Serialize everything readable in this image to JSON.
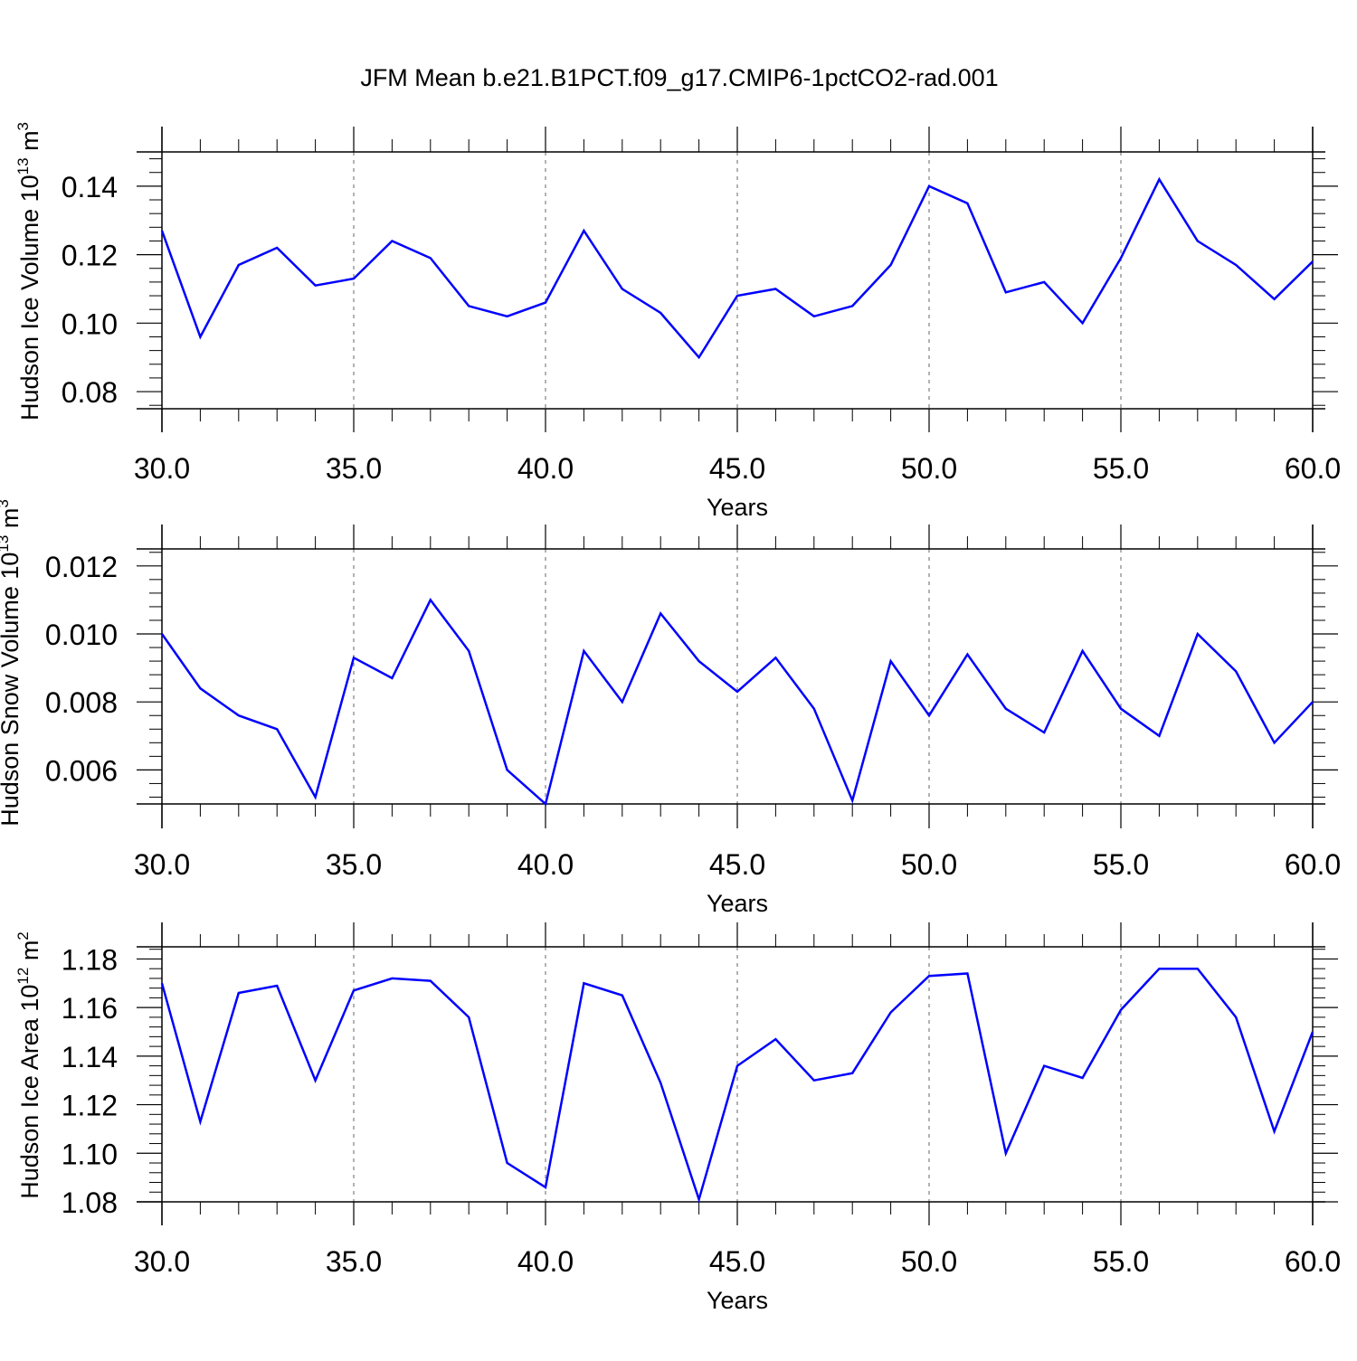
{
  "title": "JFM Mean b.e21.B1PCT.f09_g17.CMIP6-1pctCO2-rad.001",
  "colors": {
    "line": "#0000ff",
    "axis": "#000000",
    "grid": "#666666",
    "background": "#ffffff"
  },
  "chart_data": [
    {
      "type": "line",
      "xlabel": "Years",
      "ylabel": "Hudson Ice Volume 10",
      "ylabel_exp": "13",
      "ylabel_unit": " m",
      "ylabel_unit_exp": "3",
      "xlim": [
        30,
        60
      ],
      "ylim": [
        0.075,
        0.15
      ],
      "xticks": [
        30,
        35,
        40,
        45,
        50,
        55,
        60
      ],
      "xtick_labels": [
        "30.0",
        "35.0",
        "40.0",
        "45.0",
        "50.0",
        "55.0",
        "60.0"
      ],
      "yticks": [
        0.08,
        0.1,
        0.12,
        0.14
      ],
      "ytick_labels": [
        "0.08",
        "0.10",
        "0.12",
        "0.14"
      ],
      "grid": "vertical dashed at major x ticks",
      "series": [
        {
          "x": [
            30,
            31,
            32,
            33,
            34,
            35,
            36,
            37,
            38,
            39,
            40,
            41,
            42,
            43,
            44,
            45,
            46,
            47,
            48,
            49,
            50,
            51,
            52,
            53,
            54,
            55,
            56,
            57,
            58,
            59,
            60
          ],
          "values": [
            0.127,
            0.096,
            0.117,
            0.122,
            0.111,
            0.113,
            0.124,
            0.119,
            0.105,
            0.102,
            0.106,
            0.127,
            0.11,
            0.103,
            0.09,
            0.108,
            0.11,
            0.102,
            0.105,
            0.117,
            0.14,
            0.135,
            0.109,
            0.112,
            0.1,
            0.119,
            0.142,
            0.124,
            0.117,
            0.107,
            0.118
          ]
        }
      ]
    },
    {
      "type": "line",
      "xlabel": "Years",
      "ylabel": "Hudson Snow Volume 10",
      "ylabel_exp": "13",
      "ylabel_unit": " m",
      "ylabel_unit_exp": "3",
      "xlim": [
        30,
        60
      ],
      "ylim": [
        0.005,
        0.0125
      ],
      "xticks": [
        30,
        35,
        40,
        45,
        50,
        55,
        60
      ],
      "xtick_labels": [
        "30.0",
        "35.0",
        "40.0",
        "45.0",
        "50.0",
        "55.0",
        "60.0"
      ],
      "yticks": [
        0.006,
        0.008,
        0.01,
        0.012
      ],
      "ytick_labels": [
        "0.006",
        "0.008",
        "0.010",
        "0.012"
      ],
      "grid": "vertical dashed at major x ticks",
      "series": [
        {
          "x": [
            30,
            31,
            32,
            33,
            34,
            35,
            36,
            37,
            38,
            39,
            40,
            41,
            42,
            43,
            44,
            45,
            46,
            47,
            48,
            49,
            50,
            51,
            52,
            53,
            54,
            55,
            56,
            57,
            58,
            59,
            60
          ],
          "values": [
            0.01,
            0.0084,
            0.0076,
            0.0072,
            0.0052,
            0.0093,
            0.0087,
            0.011,
            0.0095,
            0.006,
            0.005,
            0.0095,
            0.008,
            0.0106,
            0.0092,
            0.0083,
            0.0093,
            0.0078,
            0.0051,
            0.0092,
            0.0076,
            0.0094,
            0.0078,
            0.0071,
            0.0095,
            0.0078,
            0.007,
            0.01,
            0.0089,
            0.0068,
            0.008
          ]
        }
      ]
    },
    {
      "type": "line",
      "xlabel": "Years",
      "ylabel": "Hudson Ice Area 10",
      "ylabel_exp": "12",
      "ylabel_unit": " m",
      "ylabel_unit_exp": "2",
      "xlim": [
        30,
        60
      ],
      "ylim": [
        1.08,
        1.185
      ],
      "xticks": [
        30,
        35,
        40,
        45,
        50,
        55,
        60
      ],
      "xtick_labels": [
        "30.0",
        "35.0",
        "40.0",
        "45.0",
        "50.0",
        "55.0",
        "60.0"
      ],
      "yticks": [
        1.08,
        1.1,
        1.12,
        1.14,
        1.16,
        1.18
      ],
      "ytick_labels": [
        "1.08",
        "1.10",
        "1.12",
        "1.14",
        "1.16",
        "1.18"
      ],
      "grid": "vertical dashed at major x ticks",
      "series": [
        {
          "x": [
            30,
            31,
            32,
            33,
            34,
            35,
            36,
            37,
            38,
            39,
            40,
            41,
            42,
            43,
            44,
            45,
            46,
            47,
            48,
            49,
            50,
            51,
            52,
            53,
            54,
            55,
            56,
            57,
            58,
            59,
            60
          ],
          "values": [
            1.17,
            1.113,
            1.166,
            1.169,
            1.13,
            1.167,
            1.172,
            1.171,
            1.156,
            1.096,
            1.086,
            1.17,
            1.165,
            1.129,
            1.081,
            1.136,
            1.147,
            1.13,
            1.133,
            1.158,
            1.173,
            1.174,
            1.1,
            1.136,
            1.131,
            1.159,
            1.176,
            1.176,
            1.156,
            1.109,
            1.15
          ]
        }
      ]
    }
  ]
}
